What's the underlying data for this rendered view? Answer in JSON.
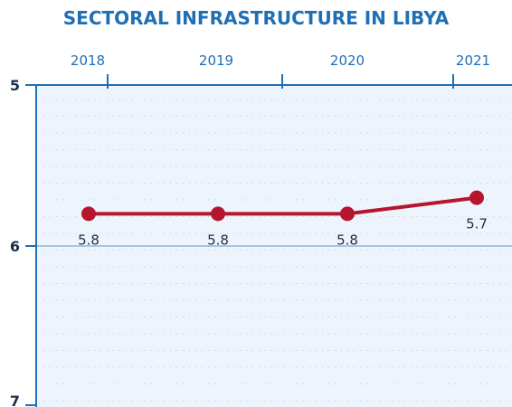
{
  "chart_data": {
    "type": "line",
    "title": "SECTORAL INFRASTRUCTURE IN LIBYA",
    "xlabel": "",
    "ylabel": "",
    "categories": [
      "2018",
      "2019",
      "2020",
      "2021"
    ],
    "series": [
      {
        "values": [
          5.8,
          5.8,
          5.8,
          5.7
        ],
        "data_labels": [
          "5.8",
          "5.8",
          "5.8",
          "5.7"
        ]
      }
    ],
    "y_ticks": [
      "5",
      "6",
      "7"
    ],
    "ylim": [
      5,
      7
    ],
    "y_axis_inverted": true,
    "x_axis_position": "top",
    "grid": "dotted",
    "colors": {
      "line": "#b5152f",
      "title": "#1f6fb5",
      "axis": "#1f6fb5",
      "plot_bg": "#eef4fb"
    }
  }
}
